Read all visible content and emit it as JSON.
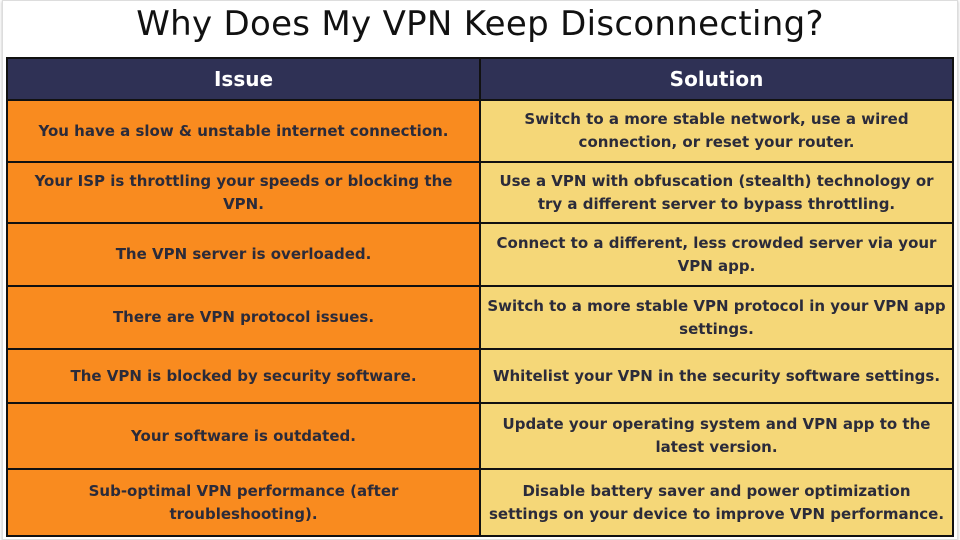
{
  "title": "Why Does My VPN Keep Disconnecting?",
  "headers": {
    "issue": "Issue",
    "solution": "Solution"
  },
  "colors": {
    "header": "#2f3155",
    "issue_bg": "#f98b1f",
    "solution_bg": "#f5d778"
  },
  "rows": [
    {
      "issue": "You have a slow & unstable internet connection.",
      "solution": "Switch to a more stable network, use a wired connection, or reset your router."
    },
    {
      "issue": "Your ISP is throttling your speeds or blocking the VPN.",
      "solution": "Use a VPN with obfuscation (stealth) technology or try a different server to bypass throttling."
    },
    {
      "issue": "The VPN server is overloaded.",
      "solution": "Connect to a different, less crowded server via your VPN app."
    },
    {
      "issue": "There are VPN protocol issues.",
      "solution": "Switch to a more stable VPN protocol in your VPN app settings."
    },
    {
      "issue": "The VPN is blocked by security software.",
      "solution": "Whitelist your VPN in the security software settings."
    },
    {
      "issue": "Your software is outdated.",
      "solution": "Update your operating system and VPN app to the latest version."
    },
    {
      "issue": "Sub-optimal VPN performance (after troubleshooting).",
      "solution": "Disable battery saver and power optimization settings on your device to improve VPN performance."
    }
  ]
}
